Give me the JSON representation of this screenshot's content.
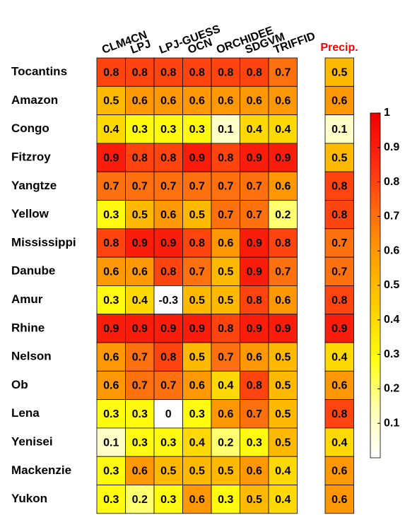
{
  "chart_data": {
    "type": "heatmap",
    "columns": [
      "CLM4CN",
      "LPJ",
      "LPJ-GUESS",
      "OCN",
      "ORCHIDEE",
      "SDGVM",
      "TRIFFID"
    ],
    "rows": [
      "Tocantins",
      "Amazon",
      "Congo",
      "Fitzroy",
      "Yangtze",
      "Yellow",
      "Mississippi",
      "Danube",
      "Amur",
      "Rhine",
      "Nelson",
      "Ob",
      "Lena",
      "Yenisei",
      "Mackenzie",
      "Yukon"
    ],
    "values": [
      [
        0.8,
        0.8,
        0.8,
        0.8,
        0.8,
        0.8,
        0.7
      ],
      [
        0.5,
        0.6,
        0.6,
        0.6,
        0.6,
        0.6,
        0.6
      ],
      [
        0.4,
        0.3,
        0.3,
        0.3,
        0.1,
        0.4,
        0.4
      ],
      [
        0.9,
        0.8,
        0.8,
        0.9,
        0.8,
        0.9,
        0.9
      ],
      [
        0.7,
        0.7,
        0.7,
        0.7,
        0.7,
        0.7,
        0.6
      ],
      [
        0.3,
        0.5,
        0.6,
        0.5,
        0.7,
        0.7,
        0.2
      ],
      [
        0.8,
        0.9,
        0.9,
        0.8,
        0.6,
        0.9,
        0.8
      ],
      [
        0.6,
        0.6,
        0.8,
        0.7,
        0.5,
        0.9,
        0.7
      ],
      [
        0.3,
        0.4,
        -0.3,
        0.5,
        0.5,
        0.8,
        0.6
      ],
      [
        0.9,
        0.9,
        0.9,
        0.9,
        0.8,
        0.9,
        0.9
      ],
      [
        0.6,
        0.7,
        0.8,
        0.5,
        0.7,
        0.6,
        0.5
      ],
      [
        0.6,
        0.7,
        0.7,
        0.6,
        0.4,
        0.8,
        0.5
      ],
      [
        0.3,
        0.3,
        0,
        0.3,
        0.6,
        0.7,
        0.5
      ],
      [
        0.1,
        0.3,
        0.3,
        0.4,
        0.2,
        0.3,
        0.5
      ],
      [
        0.3,
        0.6,
        0.5,
        0.5,
        0.5,
        0.6,
        0.4
      ],
      [
        0.3,
        0.2,
        0.3,
        0.6,
        0.3,
        0.5,
        0.4
      ]
    ],
    "extra_column": {
      "name": "Precip.",
      "color": "#ff0000",
      "values": [
        0.5,
        0.6,
        0.1,
        0.5,
        0.8,
        0.8,
        0.7,
        0.7,
        0.8,
        0.9,
        0.4,
        0.6,
        0.8,
        0.4,
        0.6,
        0.6
      ]
    },
    "colormap": [
      "#ffffff",
      "#ffffb0",
      "#ffff10",
      "#ffd000",
      "#ffa400",
      "#ff6a10",
      "#ff2a10",
      "#f00000"
    ],
    "clim": [
      0,
      1
    ],
    "cticks": [
      0.1,
      0.2,
      0.3,
      0.4,
      0.5,
      0.6,
      0.7,
      0.8,
      0.9,
      1
    ]
  }
}
